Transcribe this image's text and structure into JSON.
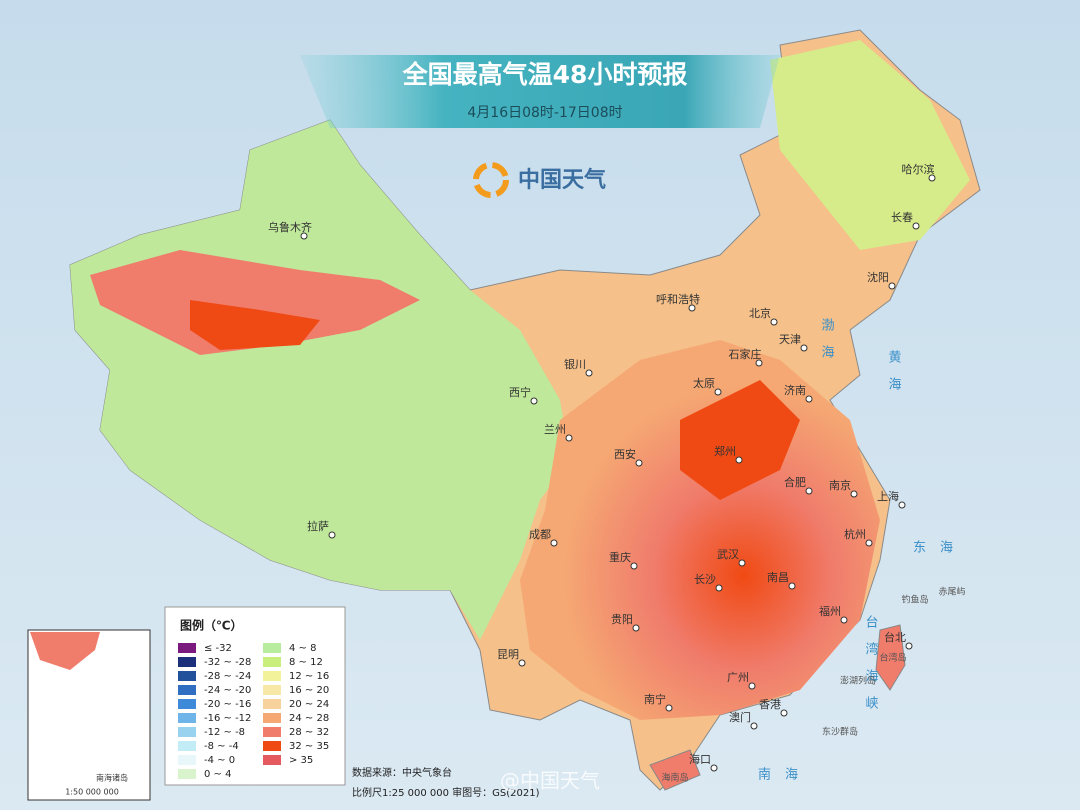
{
  "header": {
    "title": "全国最高气温48小时预报",
    "subtitle": "4月16日08时-17日08时",
    "logo": "中国天气"
  },
  "cities": [
    "乌鲁木齐",
    "哈尔滨",
    "长春",
    "沈阳",
    "呼和浩特",
    "北京",
    "天津",
    "石家庄",
    "太原",
    "济南",
    "银川",
    "西宁",
    "兰州",
    "西安",
    "郑州",
    "合肥",
    "南京",
    "上海",
    "拉萨",
    "成都",
    "武汉",
    "杭州",
    "重庆",
    "长沙",
    "南昌",
    "福州",
    "贵阳",
    "台北",
    "昆明",
    "广州",
    "南宁",
    "香港",
    "澳门",
    "海口"
  ],
  "seas": [
    "渤海",
    "黄海",
    "东海",
    "台湾海峡",
    "南海"
  ],
  "islands": [
    "钓鱼岛",
    "赤尾屿",
    "台湾岛",
    "澎湖列岛",
    "东沙群岛",
    "海南岛"
  ],
  "legend": {
    "title": "图例（℃）",
    "items": [
      {
        "label": "≤ -32",
        "color": "#7a1a7e"
      },
      {
        "label": "-32 ~ -28",
        "color": "#1c2f7a"
      },
      {
        "label": "-28 ~ -24",
        "color": "#23509a"
      },
      {
        "label": "-24 ~ -20",
        "color": "#2f6ec0"
      },
      {
        "label": "-20 ~ -16",
        "color": "#3f8ad8"
      },
      {
        "label": "-16 ~ -12",
        "color": "#6fb4e8"
      },
      {
        "label": "-12 ~ -8",
        "color": "#98d2ee"
      },
      {
        "label": "-8 ~ -4",
        "color": "#c2ecf6"
      },
      {
        "label": "-4 ~ 0",
        "color": "#e8f8fa"
      },
      {
        "label": "0 ~ 4",
        "color": "#d9f4cc"
      },
      {
        "label": "4 ~ 8",
        "color": "#b8ec9e"
      },
      {
        "label": "8 ~ 12",
        "color": "#c8ee7c"
      },
      {
        "label": "12 ~ 16",
        "color": "#f2f29a"
      },
      {
        "label": "16 ~ 20",
        "color": "#f8e8a6"
      },
      {
        "label": "20 ~ 24",
        "color": "#f8d29c"
      },
      {
        "label": "24 ~ 28",
        "color": "#f5a873"
      },
      {
        "label": "28 ~ 32",
        "color": "#f07c6c"
      },
      {
        "label": "32 ~ 35",
        "color": "#f04a14"
      },
      {
        "label": "> 35",
        "color": "#e45a5e"
      }
    ]
  },
  "footer": {
    "source": "数据来源：中央气象台",
    "scale": "比例尺1:25 000 000  审图号：GS(2021)",
    "watermark": "@中国天气"
  },
  "inset": {
    "label": "南海诸岛",
    "scale": "1:50 000 000"
  }
}
